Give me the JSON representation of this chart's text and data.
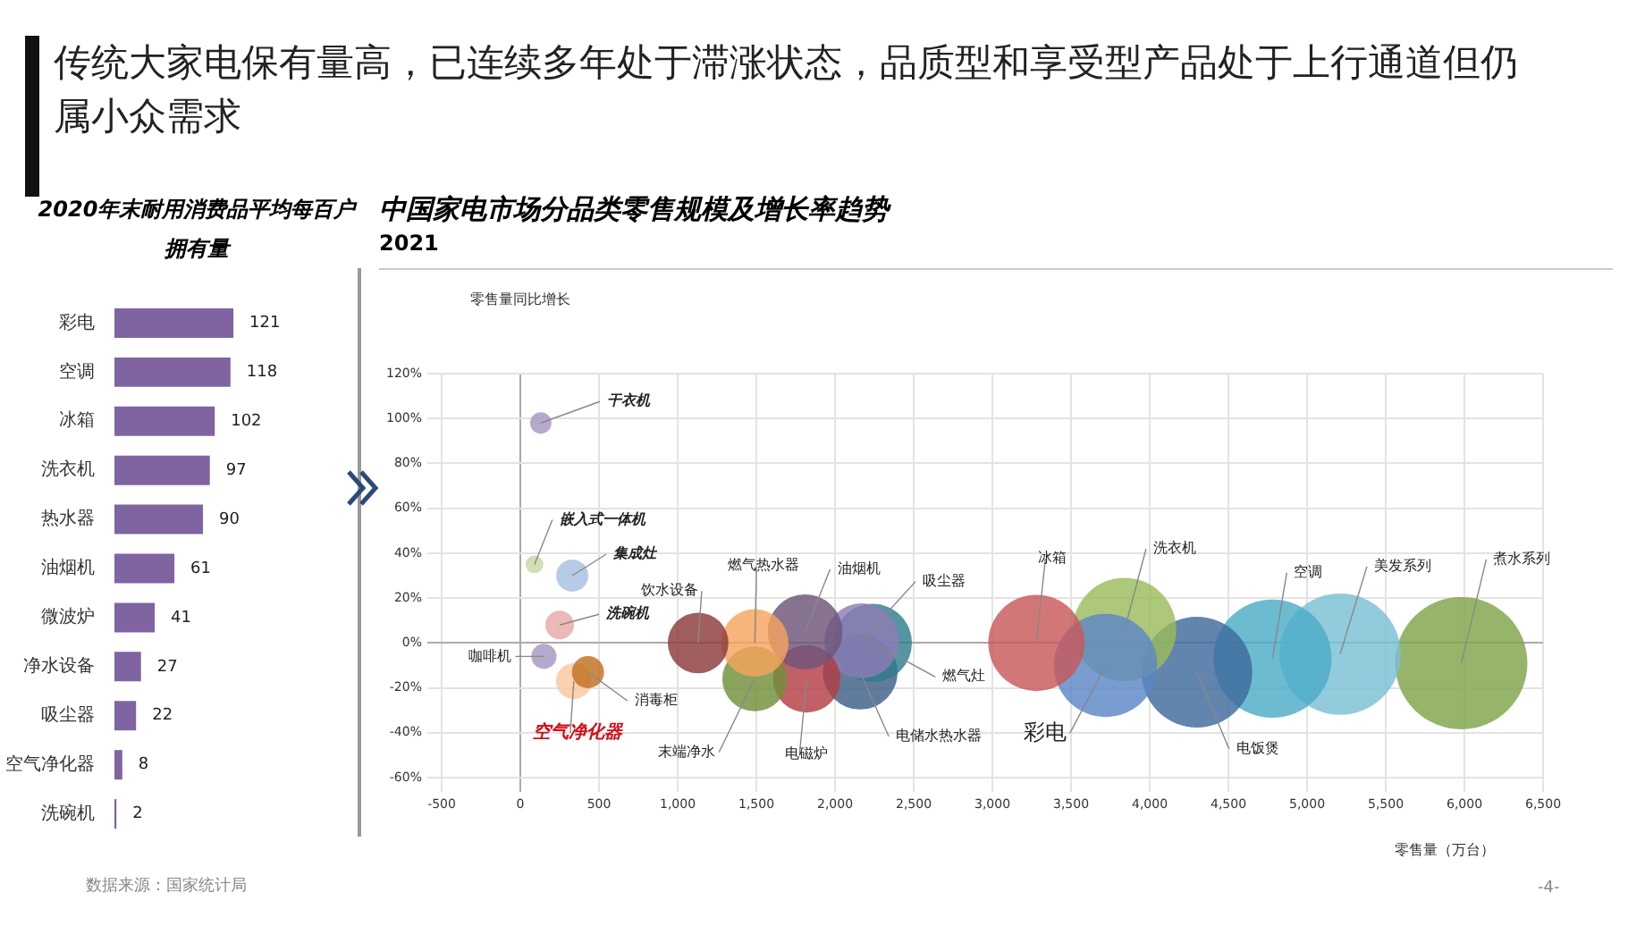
{
  "chart_data": [
    {
      "type": "bar",
      "orientation": "horizontal",
      "title": "2020年末耐用消费品平均每百户拥有量",
      "categories": [
        "彩电",
        "空调",
        "冰箱",
        "洗衣机",
        "热水器",
        "油烟机",
        "微波炉",
        "净水设备",
        "吸尘器",
        "空气净化器",
        "洗碗机"
      ],
      "values": [
        121,
        118,
        102,
        97,
        90,
        61,
        41,
        27,
        22,
        8,
        2
      ],
      "color": "#8064a2",
      "data_labels": true,
      "tick_labels": "y",
      "annotations": [
        "传统大家电保有量高，已连续多年处于滞涨状态，品质型和享受型产品处于上行通道但仍属小众需求",
        "数据来源：国家统计局",
        "-4-"
      ]
    },
    {
      "type": "bubble",
      "title": "中国家电市场分品类零售规模及增长率趋势",
      "subtitle": "2021",
      "xlabel": "零售量（万台）",
      "ylabel": "零售量同比增长",
      "xlim": [
        -500,
        6500
      ],
      "xticks": [
        -500,
        0,
        500,
        {
          "value": 1000,
          "label": "1,000"
        },
        {
          "value": 1500,
          "label": "1,500"
        },
        {
          "value": 2000,
          "label": "2,000"
        },
        {
          "value": 2500,
          "label": "2,500"
        },
        {
          "value": 3000,
          "label": "3,000"
        },
        {
          "value": 3500,
          "label": "3,500"
        },
        {
          "value": 4000,
          "label": "4,000"
        },
        {
          "value": 4500,
          "label": "4,500"
        },
        {
          "value": 5000,
          "label": "5,000"
        },
        {
          "value": 5500,
          "label": "5,500"
        },
        {
          "value": 6000,
          "label": "6,000"
        },
        {
          "value": 6500,
          "label": "6,500"
        }
      ],
      "ylim": [
        -60,
        120
      ],
      "yticks": [
        {
          "value": -60,
          "label": "-60%"
        },
        {
          "value": -40,
          "label": "-40%"
        },
        {
          "value": -20,
          "label": "-20%"
        },
        {
          "value": 0,
          "label": "0%"
        },
        {
          "value": 20,
          "label": "20%"
        },
        {
          "value": 40,
          "label": "40%"
        },
        {
          "value": 60,
          "label": "60%"
        },
        {
          "value": 80,
          "label": "80%"
        },
        {
          "value": 100,
          "label": "100%"
        },
        {
          "value": 120,
          "label": "120%"
        }
      ],
      "grid": true,
      "series": [
        {
          "name": "干衣机",
          "color": "#a497c1",
          "x": [
            130
          ],
          "values": [
            98
          ],
          "sizes": [
            0.026
          ]
        },
        {
          "name": "嵌入式一体机",
          "color": "#c5d9a0",
          "x": [
            90
          ],
          "values": [
            35
          ],
          "sizes": [
            0.018
          ]
        },
        {
          "name": "集成灶",
          "color": "#a5bfe0",
          "x": [
            330
          ],
          "values": [
            30
          ],
          "sizes": [
            0.059
          ]
        },
        {
          "name": "洗碗机",
          "color": "#e6a9a6",
          "x": [
            250
          ],
          "values": [
            8
          ],
          "sizes": [
            0.047
          ]
        },
        {
          "name": "咖啡机",
          "color": "#a497c1",
          "x": [
            150
          ],
          "values": [
            -6
          ],
          "sizes": [
            0.036
          ]
        },
        {
          "name": "消毒柜",
          "color": "#c0701e",
          "x": [
            430
          ],
          "values": [
            -13
          ],
          "sizes": [
            0.059
          ]
        },
        {
          "name": "空气净化器",
          "color": "#f9c8a0",
          "x": [
            340
          ],
          "values": [
            -17
          ],
          "sizes": [
            0.073
          ]
        },
        {
          "name": "饮水设备",
          "color": "#8b3a3a",
          "x": [
            1130
          ],
          "values": [
            0
          ],
          "sizes": [
            0.21
          ]
        },
        {
          "name": "燃气热水器",
          "color": "#f7a35c",
          "x": [
            1490
          ],
          "values": [
            0
          ],
          "sizes": [
            0.26
          ]
        },
        {
          "name": "末端净水",
          "color": "#6f8f3a",
          "x": [
            1490
          ],
          "values": [
            -16
          ],
          "sizes": [
            0.24
          ]
        },
        {
          "name": "油烟机",
          "color": "#6d5478",
          "x": [
            1810
          ],
          "values": [
            5
          ],
          "sizes": [
            0.32
          ]
        },
        {
          "name": "电磁炉",
          "color": "#b33c44",
          "x": [
            1820
          ],
          "values": [
            -16
          ],
          "sizes": [
            0.26
          ]
        },
        {
          "name": "吸尘器",
          "color": "#8e7cb5",
          "x": [
            2170
          ],
          "values": [
            1
          ],
          "sizes": [
            0.32
          ]
        },
        {
          "name": "燃气灶",
          "color": "#2f7c8c",
          "x": [
            2240
          ],
          "values": [
            0
          ],
          "sizes": [
            0.35
          ]
        },
        {
          "name": "电储水热水器",
          "color": "#3c5f86",
          "x": [
            2160
          ],
          "values": [
            -13
          ],
          "sizes": [
            0.32
          ]
        },
        {
          "name": "冰箱",
          "color": "#c8585a",
          "x": [
            3280
          ],
          "values": [
            0
          ],
          "sizes": [
            0.53
          ]
        },
        {
          "name": "彩电",
          "color": "#5b87c5",
          "x": [
            3720
          ],
          "values": [
            -10
          ],
          "sizes": [
            0.61
          ]
        },
        {
          "name": "洗衣机",
          "color": "#9bbb59",
          "x": [
            3840
          ],
          "values": [
            6
          ],
          "sizes": [
            0.61
          ]
        },
        {
          "name": "电饭煲",
          "color": "#3f6a9c",
          "x": [
            4300
          ],
          "values": [
            -13
          ],
          "sizes": [
            0.7
          ]
        },
        {
          "name": "空调",
          "color": "#4bacc6",
          "x": [
            4780
          ],
          "values": [
            -7
          ],
          "sizes": [
            0.8
          ]
        },
        {
          "name": "美发系列",
          "color": "#79bfd4",
          "x": [
            5210
          ],
          "values": [
            -5
          ],
          "sizes": [
            0.84
          ]
        },
        {
          "name": "煮水系列",
          "color": "#7ea44a",
          "x": [
            5980
          ],
          "values": [
            -9
          ],
          "sizes": [
            1
          ]
        }
      ]
    }
  ]
}
